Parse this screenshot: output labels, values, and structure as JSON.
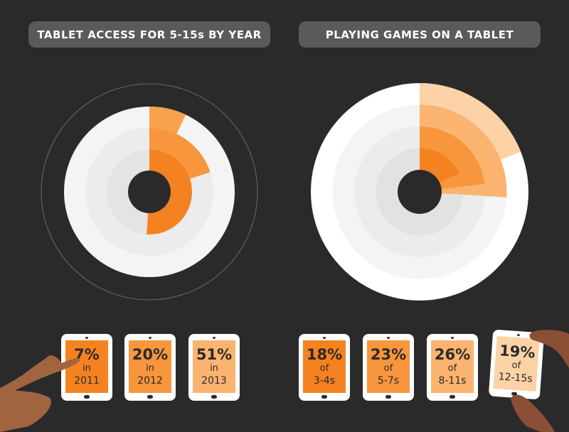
{
  "chart_data": [
    {
      "type": "radial-bar",
      "title": "TABLET ACCESS FOR 5-15s BY YEAR",
      "series": [
        {
          "label": "2011",
          "value": 7,
          "display": "7%",
          "connector": "in",
          "color": "#f5973f"
        },
        {
          "label": "2012",
          "value": 20,
          "display": "20%",
          "connector": "in",
          "color": "#f7a24c"
        },
        {
          "label": "2013",
          "value": 51,
          "display": "51%",
          "connector": "in",
          "color": "#f58220"
        }
      ],
      "value_unit": "%",
      "max": 100
    },
    {
      "type": "radial-bar",
      "title": "PLAYING GAMES ON A TABLET",
      "series": [
        {
          "label": "3-4s",
          "value": 18,
          "display": "18%",
          "connector": "of",
          "color": "#f58220"
        },
        {
          "label": "5-7s",
          "value": 23,
          "display": "23%",
          "connector": "of",
          "color": "#f7963c"
        },
        {
          "label": "8-11s",
          "value": 26,
          "display": "26%",
          "connector": "of",
          "color": "#fab46f"
        },
        {
          "label": "12-15s",
          "value": 19,
          "display": "19%",
          "connector": "of",
          "color": "#fcd2a6"
        }
      ],
      "value_unit": "%",
      "max": 100
    }
  ],
  "colors": {
    "background": "#2b2a2a",
    "pill": "#5b5a59",
    "tablet_screen_dark": "#f58220",
    "tablet_screen_mid": "#f7a24c",
    "tablet_screen_light": "#fab46f",
    "tablet_screen_pale": "#fcd2a6",
    "hand": "#a0653f"
  }
}
